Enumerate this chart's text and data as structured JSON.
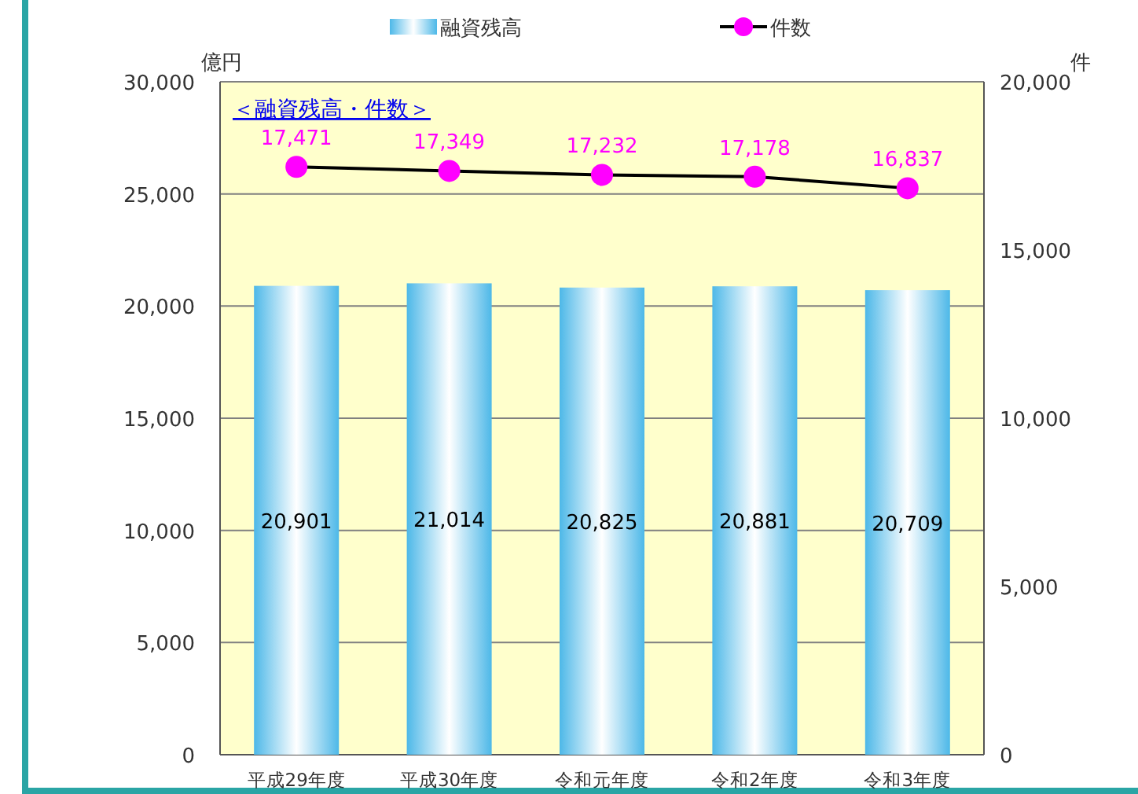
{
  "chart_data": {
    "type": "bar",
    "title": "＜融資残高・件数＞",
    "ylabel": "億円",
    "y2label": "件",
    "categories": [
      "平成29年度",
      "平成30年度",
      "令和元年度",
      "令和2年度",
      "令和3年度"
    ],
    "series": [
      {
        "name": "融資残高",
        "color": "#4db8e8",
        "values": [
          20901,
          21014,
          20825,
          20881,
          20709
        ],
        "value_labels": [
          "20,901",
          "21,014",
          "20,825",
          "20,881",
          "20,709"
        ]
      },
      {
        "name": "件数",
        "type": "line",
        "axis": "y2",
        "color": "#ff00ff",
        "marker": "circle",
        "values": [
          17471,
          17349,
          17232,
          17178,
          16837
        ],
        "value_labels": [
          "17,471",
          "17,349",
          "17,232",
          "17,178",
          "16,837"
        ]
      }
    ],
    "ylim": [
      0,
      30000
    ],
    "yticks": [
      {
        "value": 0,
        "label": "0"
      },
      {
        "value": 5000,
        "label": "5,000"
      },
      {
        "value": 10000,
        "label": "10,000"
      },
      {
        "value": 15000,
        "label": "15,000"
      },
      {
        "value": 20000,
        "label": "20,000"
      },
      {
        "value": 25000,
        "label": "25,000"
      },
      {
        "value": 30000,
        "label": "30,000"
      }
    ],
    "y2lim": [
      0,
      20000
    ],
    "y2ticks": [
      {
        "value": 0,
        "label": "0"
      },
      {
        "value": 5000,
        "label": "5,000"
      },
      {
        "value": 10000,
        "label": "10,000"
      },
      {
        "value": 15000,
        "label": "15,000"
      },
      {
        "value": 20000,
        "label": "20,000"
      }
    ],
    "grid": "y",
    "legend": "top"
  }
}
